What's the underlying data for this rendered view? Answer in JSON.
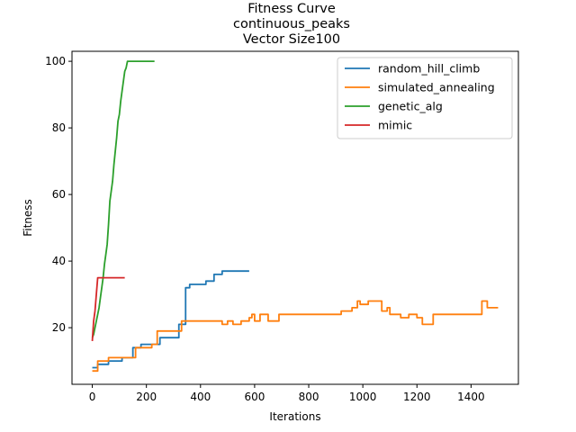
{
  "chart_data": {
    "type": "line",
    "title_lines": [
      "Fitness Curve",
      "continuous_peaks",
      "Vector Size100"
    ],
    "xlabel": "Iterations",
    "ylabel": "Fitness",
    "xlim": [
      -75,
      1575
    ],
    "ylim": [
      3,
      103
    ],
    "xticks": [
      0,
      200,
      400,
      600,
      800,
      1000,
      1200,
      1400
    ],
    "yticks": [
      20,
      40,
      60,
      80,
      100
    ],
    "grid": false,
    "legend_position": "top-right",
    "series": [
      {
        "name": "random_hill_climb",
        "color": "#1f77b4",
        "x": [
          0,
          20,
          20,
          60,
          60,
          110,
          110,
          150,
          150,
          180,
          180,
          250,
          250,
          320,
          320,
          345,
          345,
          360,
          360,
          420,
          420,
          450,
          450,
          480,
          480,
          580
        ],
        "y": [
          8,
          8,
          9,
          9,
          10,
          10,
          11,
          11,
          14,
          14,
          15,
          15,
          17,
          17,
          21,
          21,
          32,
          32,
          33,
          33,
          34,
          34,
          36,
          36,
          37,
          37
        ]
      },
      {
        "name": "simulated_annealing",
        "color": "#ff7f0e",
        "x": [
          0,
          20,
          20,
          60,
          60,
          160,
          160,
          220,
          220,
          240,
          240,
          330,
          330,
          350,
          350,
          480,
          480,
          500,
          500,
          520,
          520,
          550,
          550,
          580,
          580,
          590,
          590,
          600,
          600,
          620,
          620,
          650,
          650,
          690,
          690,
          920,
          920,
          960,
          960,
          980,
          980,
          990,
          990,
          1020,
          1020,
          1070,
          1070,
          1090,
          1090,
          1100,
          1100,
          1140,
          1140,
          1170,
          1170,
          1200,
          1200,
          1220,
          1220,
          1260,
          1260,
          1300,
          1300,
          1400,
          1400,
          1440,
          1440,
          1460,
          1460,
          1500
        ],
        "y": [
          7,
          7,
          10,
          10,
          11,
          11,
          14,
          14,
          15,
          15,
          19,
          19,
          22,
          22,
          22,
          22,
          21,
          21,
          22,
          22,
          21,
          21,
          22,
          22,
          23,
          23,
          24,
          24,
          22,
          22,
          24,
          24,
          22,
          22,
          24,
          24,
          25,
          25,
          26,
          26,
          28,
          28,
          27,
          27,
          28,
          28,
          25,
          25,
          26,
          26,
          24,
          24,
          23,
          23,
          24,
          24,
          23,
          23,
          21,
          21,
          24,
          24,
          24,
          24,
          24,
          24,
          28,
          28,
          26,
          26
        ]
      },
      {
        "name": "genetic_alg",
        "color": "#2ca02c",
        "x": [
          0,
          5,
          10,
          15,
          20,
          25,
          30,
          35,
          40,
          45,
          50,
          55,
          60,
          65,
          70,
          75,
          80,
          85,
          90,
          95,
          100,
          105,
          110,
          115,
          120,
          125,
          130,
          230
        ],
        "y": [
          17,
          18,
          20,
          22,
          24,
          26,
          29,
          32,
          35,
          39,
          42,
          45,
          51,
          58,
          61,
          64,
          69,
          73,
          77,
          82,
          84,
          88,
          91,
          94,
          97,
          98,
          100,
          100
        ]
      },
      {
        "name": "mimic",
        "color": "#d62728",
        "x": [
          0,
          5,
          10,
          15,
          20,
          30,
          120
        ],
        "y": [
          16,
          22,
          25,
          30,
          35,
          35,
          35
        ]
      }
    ]
  }
}
